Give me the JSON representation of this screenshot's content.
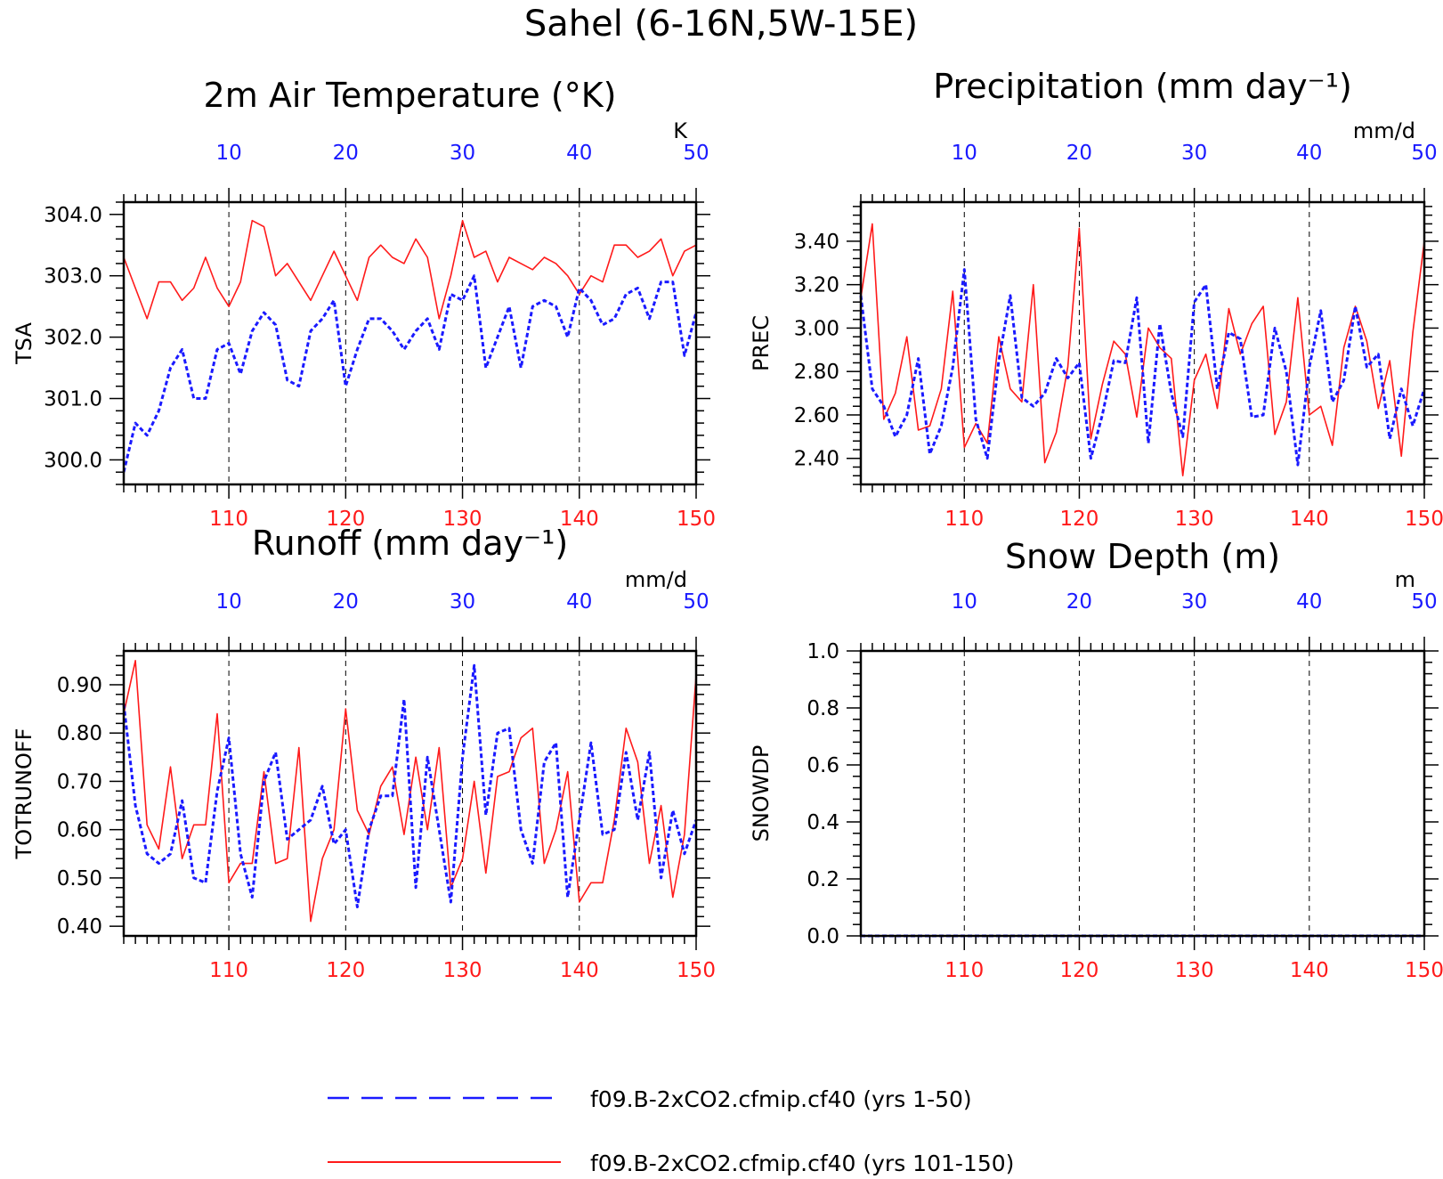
{
  "figure_title": "Sahel (6-16N,5W-15E)",
  "colors": {
    "series_first": "#1a1aff",
    "series_last": "#ff1a1a",
    "top_axis": "#1a1aff",
    "bottom_axis": "#ff1a1a"
  },
  "legend": [
    {
      "label": "f09.B-2xCO2.cfmip.cf40 (yrs 1-50)",
      "color": "#1a1aff",
      "style": "dashed"
    },
    {
      "label": "f09.B-2xCO2.cfmip.cf40 (yrs 101-150)",
      "color": "#ff1a1a",
      "style": "solid"
    }
  ],
  "chart_data": [
    {
      "type": "line",
      "title": "2m Air Temperature (°K)",
      "ylabel": "TSA",
      "units": "K",
      "ylim": [
        299.6,
        304.2
      ],
      "yticks": [
        "300.0",
        "301.0",
        "302.0",
        "303.0",
        "304.0"
      ],
      "top_xticks": [
        "10",
        "20",
        "30",
        "40",
        "50"
      ],
      "bottom_xticks": [
        "110",
        "120",
        "130",
        "140",
        "150"
      ],
      "x_top_range": [
        1,
        50
      ],
      "x_bottom_range": [
        101,
        150
      ],
      "series": [
        {
          "name": "f09.B-2xCO2.cfmip.cf40 (yrs 1-50)",
          "style": "dashed",
          "values": [
            299.8,
            300.6,
            300.4,
            300.8,
            301.5,
            301.8,
            301.0,
            301.0,
            301.8,
            301.9,
            301.4,
            302.1,
            302.4,
            302.2,
            301.3,
            301.2,
            302.1,
            302.3,
            302.6,
            301.2,
            301.8,
            302.3,
            302.3,
            302.1,
            301.8,
            302.1,
            302.3,
            301.8,
            302.7,
            302.6,
            303.0,
            301.5,
            302.0,
            302.5,
            301.5,
            302.5,
            302.6,
            302.5,
            302.0,
            302.8,
            302.6,
            302.2,
            302.3,
            302.7,
            302.8,
            302.3,
            302.9,
            302.9,
            301.7,
            302.4
          ]
        },
        {
          "name": "f09.B-2xCO2.cfmip.cf40 (yrs 101-150)",
          "style": "solid",
          "values": [
            303.3,
            302.8,
            302.3,
            302.9,
            302.9,
            302.6,
            302.8,
            303.3,
            302.8,
            302.5,
            302.9,
            303.9,
            303.8,
            303.0,
            303.2,
            302.9,
            302.6,
            303.0,
            303.4,
            303.0,
            302.6,
            303.3,
            303.5,
            303.3,
            303.2,
            303.6,
            303.3,
            302.3,
            303.0,
            303.9,
            303.3,
            303.4,
            302.9,
            303.3,
            303.2,
            303.1,
            303.3,
            303.2,
            303.0,
            302.7,
            303.0,
            302.9,
            303.5,
            303.5,
            303.3,
            303.4,
            303.6,
            303.0,
            303.4,
            303.5
          ]
        }
      ]
    },
    {
      "type": "line",
      "title": "Precipitation (mm day⁻¹)",
      "ylabel": "PREC",
      "units": "mm/d",
      "ylim": [
        2.28,
        3.58
      ],
      "yticks": [
        "2.40",
        "2.60",
        "2.80",
        "3.00",
        "3.20",
        "3.40"
      ],
      "top_xticks": [
        "10",
        "20",
        "30",
        "40",
        "50"
      ],
      "bottom_xticks": [
        "110",
        "120",
        "130",
        "140",
        "150"
      ],
      "x_top_range": [
        1,
        50
      ],
      "x_bottom_range": [
        101,
        150
      ],
      "series": [
        {
          "name": "f09.B-2xCO2.cfmip.cf40 (yrs 1-50)",
          "style": "dashed",
          "values": [
            3.15,
            2.72,
            2.64,
            2.5,
            2.6,
            2.86,
            2.42,
            2.55,
            2.82,
            3.27,
            2.58,
            2.4,
            2.85,
            3.15,
            2.68,
            2.64,
            2.7,
            2.86,
            2.77,
            2.84,
            2.4,
            2.6,
            2.85,
            2.84,
            3.14,
            2.47,
            3.02,
            2.7,
            2.5,
            3.12,
            3.2,
            2.72,
            2.98,
            2.95,
            2.59,
            2.6,
            3.0,
            2.8,
            2.37,
            2.82,
            3.08,
            2.66,
            2.76,
            3.1,
            2.82,
            2.88,
            2.49,
            2.72,
            2.55,
            2.72
          ]
        },
        {
          "name": "f09.B-2xCO2.cfmip.cf40 (yrs 101-150)",
          "style": "solid",
          "values": [
            3.14,
            3.48,
            2.58,
            2.7,
            2.96,
            2.53,
            2.55,
            2.72,
            3.17,
            2.45,
            2.56,
            2.47,
            2.96,
            2.72,
            2.66,
            3.2,
            2.38,
            2.52,
            2.82,
            3.46,
            2.49,
            2.74,
            2.94,
            2.88,
            2.59,
            3.0,
            2.91,
            2.86,
            2.32,
            2.76,
            2.88,
            2.63,
            3.09,
            2.88,
            3.02,
            3.1,
            2.51,
            2.66,
            3.14,
            2.6,
            2.64,
            2.46,
            2.91,
            3.1,
            2.94,
            2.63,
            2.85,
            2.41,
            2.98,
            3.4
          ]
        }
      ]
    },
    {
      "type": "line",
      "title": "Runoff (mm day⁻¹)",
      "ylabel": "TOTRUNOFF",
      "units": "mm/d",
      "ylim": [
        0.38,
        0.97
      ],
      "yticks": [
        "0.40",
        "0.50",
        "0.60",
        "0.70",
        "0.80",
        "0.90"
      ],
      "top_xticks": [
        "10",
        "20",
        "30",
        "40",
        "50"
      ],
      "bottom_xticks": [
        "110",
        "120",
        "130",
        "140",
        "150"
      ],
      "x_top_range": [
        1,
        50
      ],
      "x_bottom_range": [
        101,
        150
      ],
      "series": [
        {
          "name": "f09.B-2xCO2.cfmip.cf40 (yrs 1-50)",
          "style": "dashed",
          "values": [
            0.86,
            0.65,
            0.55,
            0.53,
            0.55,
            0.66,
            0.5,
            0.49,
            0.68,
            0.79,
            0.55,
            0.46,
            0.7,
            0.76,
            0.58,
            0.6,
            0.62,
            0.69,
            0.57,
            0.6,
            0.44,
            0.6,
            0.67,
            0.67,
            0.87,
            0.48,
            0.75,
            0.6,
            0.45,
            0.75,
            0.94,
            0.63,
            0.8,
            0.81,
            0.6,
            0.53,
            0.74,
            0.78,
            0.46,
            0.62,
            0.78,
            0.59,
            0.6,
            0.76,
            0.62,
            0.76,
            0.5,
            0.64,
            0.55,
            0.62
          ]
        },
        {
          "name": "f09.B-2xCO2.cfmip.cf40 (yrs 101-150)",
          "style": "solid",
          "values": [
            0.84,
            0.95,
            0.61,
            0.56,
            0.73,
            0.54,
            0.61,
            0.61,
            0.84,
            0.49,
            0.53,
            0.53,
            0.72,
            0.53,
            0.54,
            0.77,
            0.41,
            0.54,
            0.6,
            0.85,
            0.64,
            0.59,
            0.69,
            0.73,
            0.59,
            0.75,
            0.6,
            0.77,
            0.48,
            0.54,
            0.7,
            0.51,
            0.71,
            0.72,
            0.79,
            0.81,
            0.53,
            0.6,
            0.72,
            0.45,
            0.49,
            0.49,
            0.62,
            0.81,
            0.74,
            0.53,
            0.65,
            0.46,
            0.59,
            0.92
          ]
        }
      ]
    },
    {
      "type": "line",
      "title": "Snow Depth (m)",
      "ylabel": "SNOWDP",
      "units": "m",
      "ylim": [
        0,
        1
      ],
      "yticks": [
        "0.0",
        "0.2",
        "0.4",
        "0.6",
        "0.8",
        "1.0"
      ],
      "top_xticks": [
        "10",
        "20",
        "30",
        "40",
        "50"
      ],
      "bottom_xticks": [
        "110",
        "120",
        "130",
        "140",
        "150"
      ],
      "x_top_range": [
        1,
        50
      ],
      "x_bottom_range": [
        101,
        150
      ],
      "series": [
        {
          "name": "f09.B-2xCO2.cfmip.cf40 (yrs 1-50)",
          "style": "dashed",
          "values": [
            0,
            0,
            0,
            0,
            0,
            0,
            0,
            0,
            0,
            0,
            0,
            0,
            0,
            0,
            0,
            0,
            0,
            0,
            0,
            0,
            0,
            0,
            0,
            0,
            0,
            0,
            0,
            0,
            0,
            0,
            0,
            0,
            0,
            0,
            0,
            0,
            0,
            0,
            0,
            0,
            0,
            0,
            0,
            0,
            0,
            0,
            0,
            0,
            0,
            0
          ]
        },
        {
          "name": "f09.B-2xCO2.cfmip.cf40 (yrs 101-150)",
          "style": "solid",
          "values": [
            0,
            0,
            0,
            0,
            0,
            0,
            0,
            0,
            0,
            0,
            0,
            0,
            0,
            0,
            0,
            0,
            0,
            0,
            0,
            0,
            0,
            0,
            0,
            0,
            0,
            0,
            0,
            0,
            0,
            0,
            0,
            0,
            0,
            0,
            0,
            0,
            0,
            0,
            0,
            0,
            0,
            0,
            0,
            0,
            0,
            0,
            0,
            0,
            0,
            0
          ]
        }
      ]
    }
  ]
}
